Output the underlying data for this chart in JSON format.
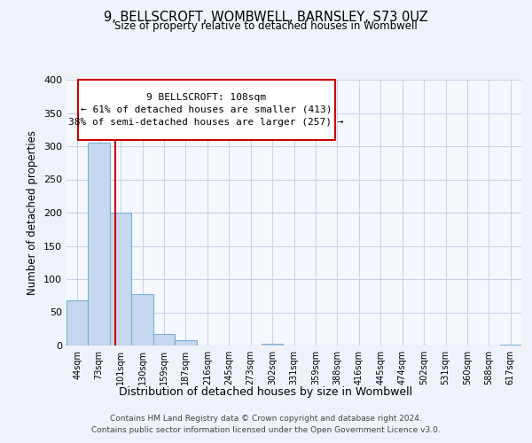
{
  "title": "9, BELLSCROFT, WOMBWELL, BARNSLEY, S73 0UZ",
  "subtitle": "Size of property relative to detached houses in Wombwell",
  "xlabel": "Distribution of detached houses by size in Wombwell",
  "ylabel": "Number of detached properties",
  "bin_labels": [
    "44sqm",
    "73sqm",
    "101sqm",
    "130sqm",
    "159sqm",
    "187sqm",
    "216sqm",
    "245sqm",
    "273sqm",
    "302sqm",
    "331sqm",
    "359sqm",
    "388sqm",
    "416sqm",
    "445sqm",
    "474sqm",
    "502sqm",
    "531sqm",
    "560sqm",
    "588sqm",
    "617sqm"
  ],
  "bin_values": [
    68,
    305,
    200,
    78,
    18,
    8,
    0,
    0,
    0,
    3,
    0,
    0,
    0,
    0,
    0,
    0,
    0,
    0,
    0,
    0,
    2
  ],
  "bar_color": "#c5d8ef",
  "bar_edge_color": "#7aafd4",
  "vline_color": "#cc0000",
  "annotation_line1": "9 BELLSCROFT: 108sqm",
  "annotation_line2": "← 61% of detached houses are smaller (413)",
  "annotation_line3": "38% of semi-detached houses are larger (257) →",
  "annotation_box_edgecolor": "#cc0000",
  "ylim": [
    0,
    400
  ],
  "yticks": [
    0,
    50,
    100,
    150,
    200,
    250,
    300,
    350,
    400
  ],
  "footer_line1": "Contains HM Land Registry data © Crown copyright and database right 2024.",
  "footer_line2": "Contains public sector information licensed under the Open Government Licence v3.0.",
  "bg_color": "#eef2f9",
  "plot_bg_color": "#f5f8fd",
  "grid_color": "#c8d4e8"
}
